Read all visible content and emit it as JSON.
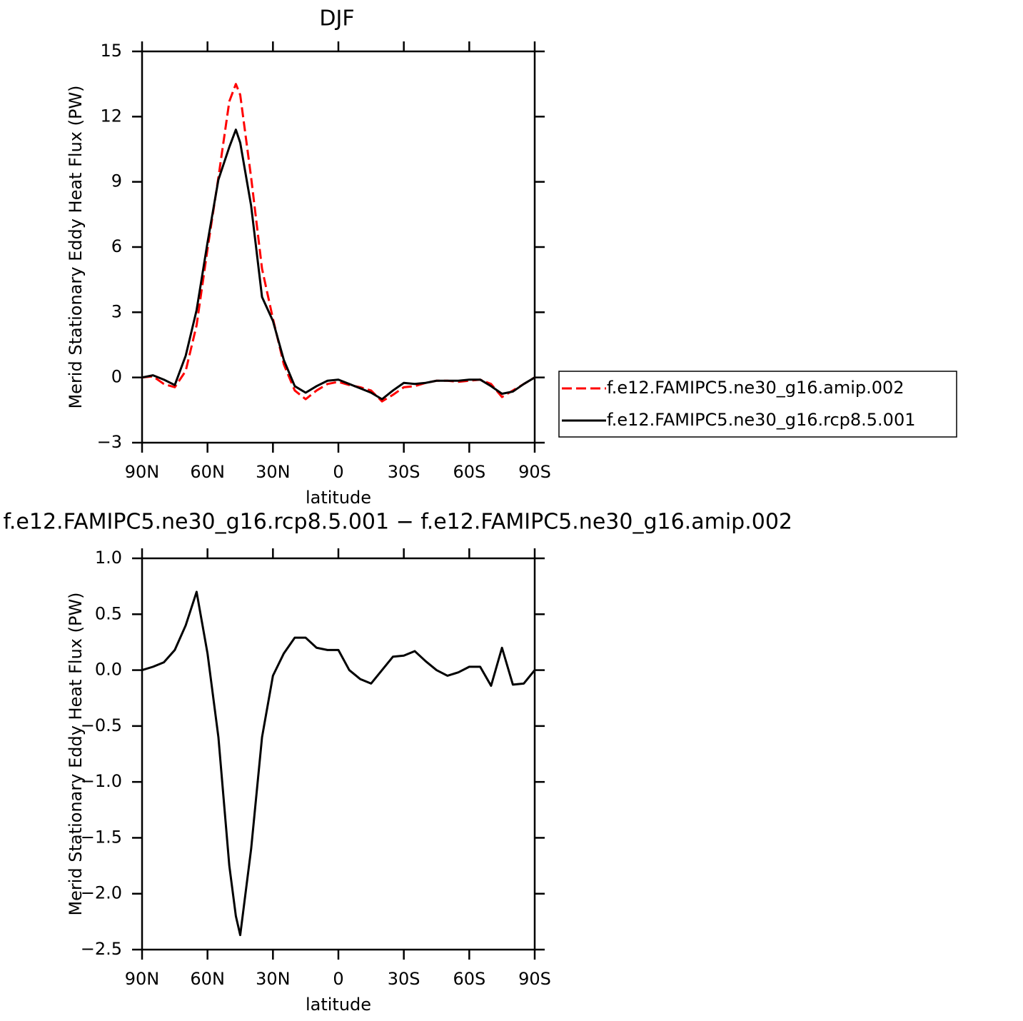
{
  "chart_data": [
    {
      "type": "line",
      "title": "DJF",
      "x_label": "latitude",
      "y_label": "Merid Stationary Eddy Heat Flux (PW)",
      "x": [
        90,
        85,
        80,
        75,
        70,
        65,
        60,
        55,
        50,
        47,
        45,
        40,
        35,
        30,
        25,
        20,
        15,
        10,
        5,
        0,
        -5,
        -10,
        -15,
        -20,
        -25,
        -30,
        -35,
        -40,
        -45,
        -50,
        -55,
        -60,
        -65,
        -70,
        -75,
        -80,
        -85,
        -90
      ],
      "series": [
        {
          "name": "f.e12.FAMIPC5.ne30_g16.amip.002",
          "color": "#ff0000",
          "line_style": "dashed",
          "values": [
            0,
            0.05,
            -0.3,
            -0.45,
            0.3,
            2.4,
            5.9,
            9.2,
            12.7,
            13.5,
            13.0,
            9.2,
            5.0,
            2.7,
            0.6,
            -0.6,
            -1.0,
            -0.6,
            -0.3,
            -0.2,
            -0.35,
            -0.45,
            -0.6,
            -1.1,
            -0.8,
            -0.45,
            -0.4,
            -0.25,
            -0.15,
            -0.15,
            -0.2,
            -0.15,
            -0.1,
            -0.3,
            -0.9,
            -0.6,
            -0.3,
            0
          ]
        },
        {
          "name": "f.e12.FAMIPC5.ne30_g16.rcp8.5.001",
          "color": "#000000",
          "line_style": "solid",
          "values": [
            0,
            0.1,
            -0.1,
            -0.35,
            1.0,
            3.1,
            6.2,
            9.1,
            10.6,
            11.4,
            10.8,
            7.9,
            3.7,
            2.6,
            0.8,
            -0.4,
            -0.7,
            -0.4,
            -0.15,
            -0.1,
            -0.3,
            -0.5,
            -0.7,
            -1.0,
            -0.6,
            -0.25,
            -0.3,
            -0.25,
            -0.15,
            -0.15,
            -0.15,
            -0.1,
            -0.1,
            -0.4,
            -0.75,
            -0.65,
            -0.3,
            0
          ]
        }
      ],
      "xlim": [
        90,
        -90
      ],
      "xticks": [
        {
          "value": 90,
          "label": "90N"
        },
        {
          "value": 60,
          "label": "60N"
        },
        {
          "value": 30,
          "label": "30N"
        },
        0,
        {
          "value": -30,
          "label": "30S"
        },
        {
          "value": -60,
          "label": "60S"
        },
        {
          "value": -90,
          "label": "90S"
        }
      ],
      "ylim": [
        -3,
        15
      ],
      "yticks": [
        {
          "value": -3,
          "label": "−3"
        },
        0,
        3,
        6,
        9,
        12,
        15
      ],
      "legend": "right"
    },
    {
      "type": "line",
      "title": "f.e12.FAMIPC5.ne30_g16.rcp8.5.001 − f.e12.FAMIPC5.ne30_g16.amip.002",
      "x_label": "latitude",
      "y_label": "Merid Stationary Eddy Heat Flux (PW)",
      "x": [
        90,
        85,
        80,
        75,
        70,
        65,
        60,
        55,
        50,
        47,
        45,
        40,
        35,
        30,
        25,
        20,
        15,
        10,
        5,
        0,
        -5,
        -10,
        -15,
        -20,
        -25,
        -30,
        -35,
        -40,
        -45,
        -50,
        -55,
        -60,
        -65,
        -70,
        -75,
        -80,
        -85,
        -90
      ],
      "series": [
        {
          "color": "#000000",
          "line_style": "solid",
          "values": [
            0,
            0.03,
            0.07,
            0.18,
            0.4,
            0.7,
            0.15,
            -0.6,
            -1.75,
            -2.2,
            -2.37,
            -1.6,
            -0.6,
            -0.05,
            0.15,
            0.29,
            0.29,
            0.2,
            0.18,
            0.18,
            0.0,
            -0.08,
            -0.12,
            0.0,
            0.12,
            0.13,
            0.17,
            0.08,
            0.0,
            -0.05,
            -0.02,
            0.03,
            0.03,
            -0.14,
            0.2,
            -0.13,
            -0.12,
            0
          ]
        }
      ],
      "xlim": [
        90,
        -90
      ],
      "xticks": [
        {
          "value": 90,
          "label": "90N"
        },
        {
          "value": 60,
          "label": "60N"
        },
        {
          "value": 30,
          "label": "30N"
        },
        0,
        {
          "value": -30,
          "label": "30S"
        },
        {
          "value": -60,
          "label": "60S"
        },
        {
          "value": -90,
          "label": "90S"
        }
      ],
      "ylim": [
        -2.5,
        1.0
      ],
      "yticks": [
        {
          "value": -2.5,
          "label": "−2.5"
        },
        {
          "value": -2.0,
          "label": "−2.0"
        },
        {
          "value": -1.5,
          "label": "−1.5"
        },
        {
          "value": -1.0,
          "label": "−1.0"
        },
        {
          "value": -0.5,
          "label": "−0.5"
        },
        {
          "value": 0.0,
          "label": "0.0"
        },
        0.5,
        {
          "value": 1.0,
          "label": "1.0"
        }
      ]
    }
  ]
}
